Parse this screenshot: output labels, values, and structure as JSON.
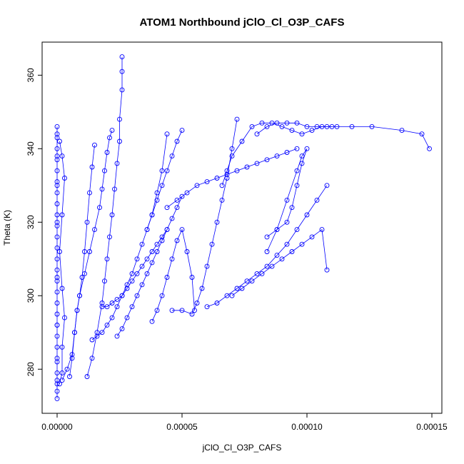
{
  "chart_data": {
    "type": "scatter",
    "title": "ATOM1 Northbound jClO_Cl_O3P_CAFS",
    "xlabel": "jClO_Cl_O3P_CAFS",
    "ylabel": "Theta (K)",
    "xlim": [
      -6e-06,
      0.000154
    ],
    "ylim": [
      268,
      369
    ],
    "x_ticks": [
      0,
      5e-05,
      0.0001,
      0.00015
    ],
    "x_tick_labels": [
      "0.00000",
      "0.00005",
      "0.00010",
      "0.00015"
    ],
    "y_ticks": [
      280,
      300,
      320,
      340,
      360
    ],
    "y_tick_labels": [
      "280",
      "300",
      "320",
      "340",
      "360"
    ],
    "grid": false,
    "legend": "none",
    "series_color": "#0000ff",
    "marker": "open-circle",
    "line": true,
    "series": [
      {
        "x": [
          0,
          0,
          0,
          0,
          0,
          0,
          0,
          0,
          0,
          0,
          0,
          0,
          0,
          0,
          0,
          0,
          0,
          0,
          0,
          0,
          0,
          0,
          0,
          0,
          0,
          0,
          0,
          0,
          0,
          0,
          0,
          0,
          0,
          0
        ],
        "y": [
          272,
          274,
          276,
          279,
          282,
          286,
          289,
          292,
          295,
          298,
          301,
          304,
          307,
          310,
          313,
          316,
          319,
          322,
          325,
          328,
          331,
          334,
          337,
          340,
          343,
          346,
          344,
          338,
          330,
          320,
          305,
          292,
          283,
          277
        ]
      },
      {
        "x": [
          1e-06,
          2e-06,
          2e-06,
          3e-06,
          2e-06,
          1e-06,
          2e-06,
          3e-06,
          2e-06,
          1e-06
        ],
        "y": [
          276,
          279,
          286,
          294,
          302,
          312,
          322,
          332,
          338,
          342
        ]
      },
      {
        "x": [
          2e-06,
          4e-06,
          6e-06,
          7e-06,
          8e-06,
          9e-06,
          1e-05,
          1.1e-05,
          1.2e-05,
          1.3e-05,
          1.4e-05,
          1.5e-05
        ],
        "y": [
          277,
          280,
          284,
          290,
          296,
          300,
          305,
          312,
          320,
          328,
          335,
          341
        ]
      },
      {
        "x": [
          5e-06,
          6e-06,
          7e-06,
          8e-06,
          9e-06,
          1.1e-05,
          1.3e-05,
          1.5e-05,
          1.7e-05,
          1.8e-05,
          1.9e-05,
          2e-05,
          2.1e-05,
          2.2e-05
        ],
        "y": [
          278,
          283,
          290,
          296,
          300,
          306,
          312,
          318,
          324,
          329,
          334,
          339,
          343,
          345
        ]
      },
      {
        "x": [
          1.2e-05,
          1.4e-05,
          1.6e-05,
          1.8e-05,
          1.9e-05,
          2e-05,
          2.1e-05,
          2.2e-05,
          2.3e-05,
          2.4e-05,
          2.5e-05,
          2.5e-05,
          2.6e-05,
          2.6e-05,
          2.6e-05
        ],
        "y": [
          278,
          283,
          290,
          298,
          304,
          310,
          316,
          322,
          329,
          336,
          342,
          348,
          356,
          361,
          365
        ]
      },
      {
        "x": [
          1.4e-05,
          1.6e-05,
          1.8e-05,
          2e-05,
          2.2e-05,
          2.4e-05,
          2.6e-05,
          2.8e-05,
          3e-05,
          3.2e-05,
          3.4e-05,
          3.6e-05,
          3.8e-05,
          4e-05,
          4.2e-05,
          4.4e-05
        ],
        "y": [
          288,
          289,
          290,
          292,
          294,
          297,
          300,
          303,
          306,
          310,
          314,
          318,
          322,
          328,
          334,
          344
        ]
      },
      {
        "x": [
          1.8e-05,
          2e-05,
          2.2e-05,
          2.4e-05,
          2.6e-05,
          2.8e-05,
          3e-05,
          3.2e-05,
          3.4e-05,
          3.6e-05,
          3.8e-05,
          4e-05,
          4.2e-05,
          4.4e-05
        ],
        "y": [
          297,
          297,
          298,
          299,
          300,
          302,
          304,
          306,
          308,
          310,
          312,
          314,
          316,
          318
        ]
      },
      {
        "x": [
          2.4e-05,
          2.6e-05,
          2.8e-05,
          3e-05,
          3.2e-05,
          3.4e-05,
          3.6e-05,
          3.8e-05,
          4e-05,
          4.2e-05,
          4.4e-05,
          4.6e-05,
          4.8e-05,
          5e-05
        ],
        "y": [
          289,
          291,
          294,
          297,
          300,
          303,
          306,
          309,
          312,
          315,
          318,
          321,
          324,
          327
        ]
      },
      {
        "x": [
          3.8e-05,
          4e-05,
          4.2e-05,
          4.4e-05,
          4.6e-05,
          4.8e-05,
          5e-05,
          5.2e-05,
          5.4e-05,
          5.5e-05
        ],
        "y": [
          293,
          296,
          300,
          305,
          310,
          315,
          318,
          312,
          305,
          296
        ]
      },
      {
        "x": [
          4.6e-05,
          5e-05,
          5.4e-05,
          5.6e-05,
          5.8e-05,
          6e-05,
          6.2e-05,
          6.4e-05,
          6.6e-05,
          6.8e-05,
          7e-05,
          7.2e-05
        ],
        "y": [
          296,
          296,
          295,
          298,
          302,
          308,
          314,
          320,
          326,
          332,
          340,
          348
        ]
      },
      {
        "x": [
          6e-05,
          6.4e-05,
          6.8e-05,
          7.2e-05,
          7.6e-05,
          8e-05,
          8.4e-05,
          8.8e-05,
          9.2e-05,
          9.6e-05,
          0.0001,
          0.000104,
          0.000108
        ],
        "y": [
          297,
          298,
          300,
          302,
          304,
          306,
          308,
          311,
          314,
          318,
          322,
          326,
          330
        ]
      },
      {
        "x": [
          6.6e-05,
          6.8e-05,
          7e-05,
          7.4e-05,
          7.8e-05,
          8.2e-05,
          8.6e-05,
          9e-05,
          9.4e-05,
          9.8e-05,
          0.000102,
          0.000106,
          0.00011
        ],
        "y": [
          330,
          334,
          338,
          342,
          346,
          347,
          347,
          346,
          345,
          344,
          345,
          346,
          346
        ]
      },
      {
        "x": [
          8e-05,
          8.4e-05,
          8.8e-05,
          9.2e-05,
          9.6e-05,
          0.0001,
          0.000104,
          0.000108,
          0.000112,
          0.000118,
          0.000126,
          0.000138,
          0.000146,
          0.000149
        ],
        "y": [
          344,
          346,
          347,
          347,
          347,
          346,
          346,
          346,
          346,
          346,
          346,
          345,
          344,
          340
        ]
      },
      {
        "x": [
          8.4e-05,
          8.8e-05,
          9.2e-05,
          9.4e-05,
          9.6e-05,
          9.8e-05,
          0.0001,
          9.8e-05,
          9.6e-05,
          9.2e-05,
          8.8e-05,
          8.4e-05
        ],
        "y": [
          316,
          318,
          320,
          324,
          330,
          336,
          340,
          338,
          334,
          326,
          318,
          312
        ]
      },
      {
        "x": [
          7e-05,
          7.4e-05,
          7.8e-05,
          8.2e-05,
          8.6e-05,
          9e-05,
          9.4e-05,
          9.8e-05,
          0.000102,
          0.000106,
          0.000108
        ],
        "y": [
          300,
          302,
          304,
          306,
          308,
          310,
          312,
          314,
          316,
          318,
          307
        ]
      },
      {
        "x": [
          4.4e-05,
          4.8e-05,
          5.2e-05,
          5.6e-05,
          6e-05,
          6.4e-05,
          6.8e-05,
          7.2e-05,
          7.6e-05,
          8e-05,
          8.4e-05,
          8.8e-05,
          9.2e-05,
          9.6e-05
        ],
        "y": [
          324,
          326,
          328,
          330,
          331,
          332,
          333,
          334,
          335,
          336,
          337,
          338,
          339,
          340
        ]
      },
      {
        "x": [
          3.6e-05,
          3.8e-05,
          4e-05,
          4.2e-05,
          4.4e-05,
          4.6e-05,
          4.8e-05,
          5e-05
        ],
        "y": [
          318,
          322,
          326,
          330,
          334,
          338,
          342,
          345
        ]
      }
    ]
  }
}
